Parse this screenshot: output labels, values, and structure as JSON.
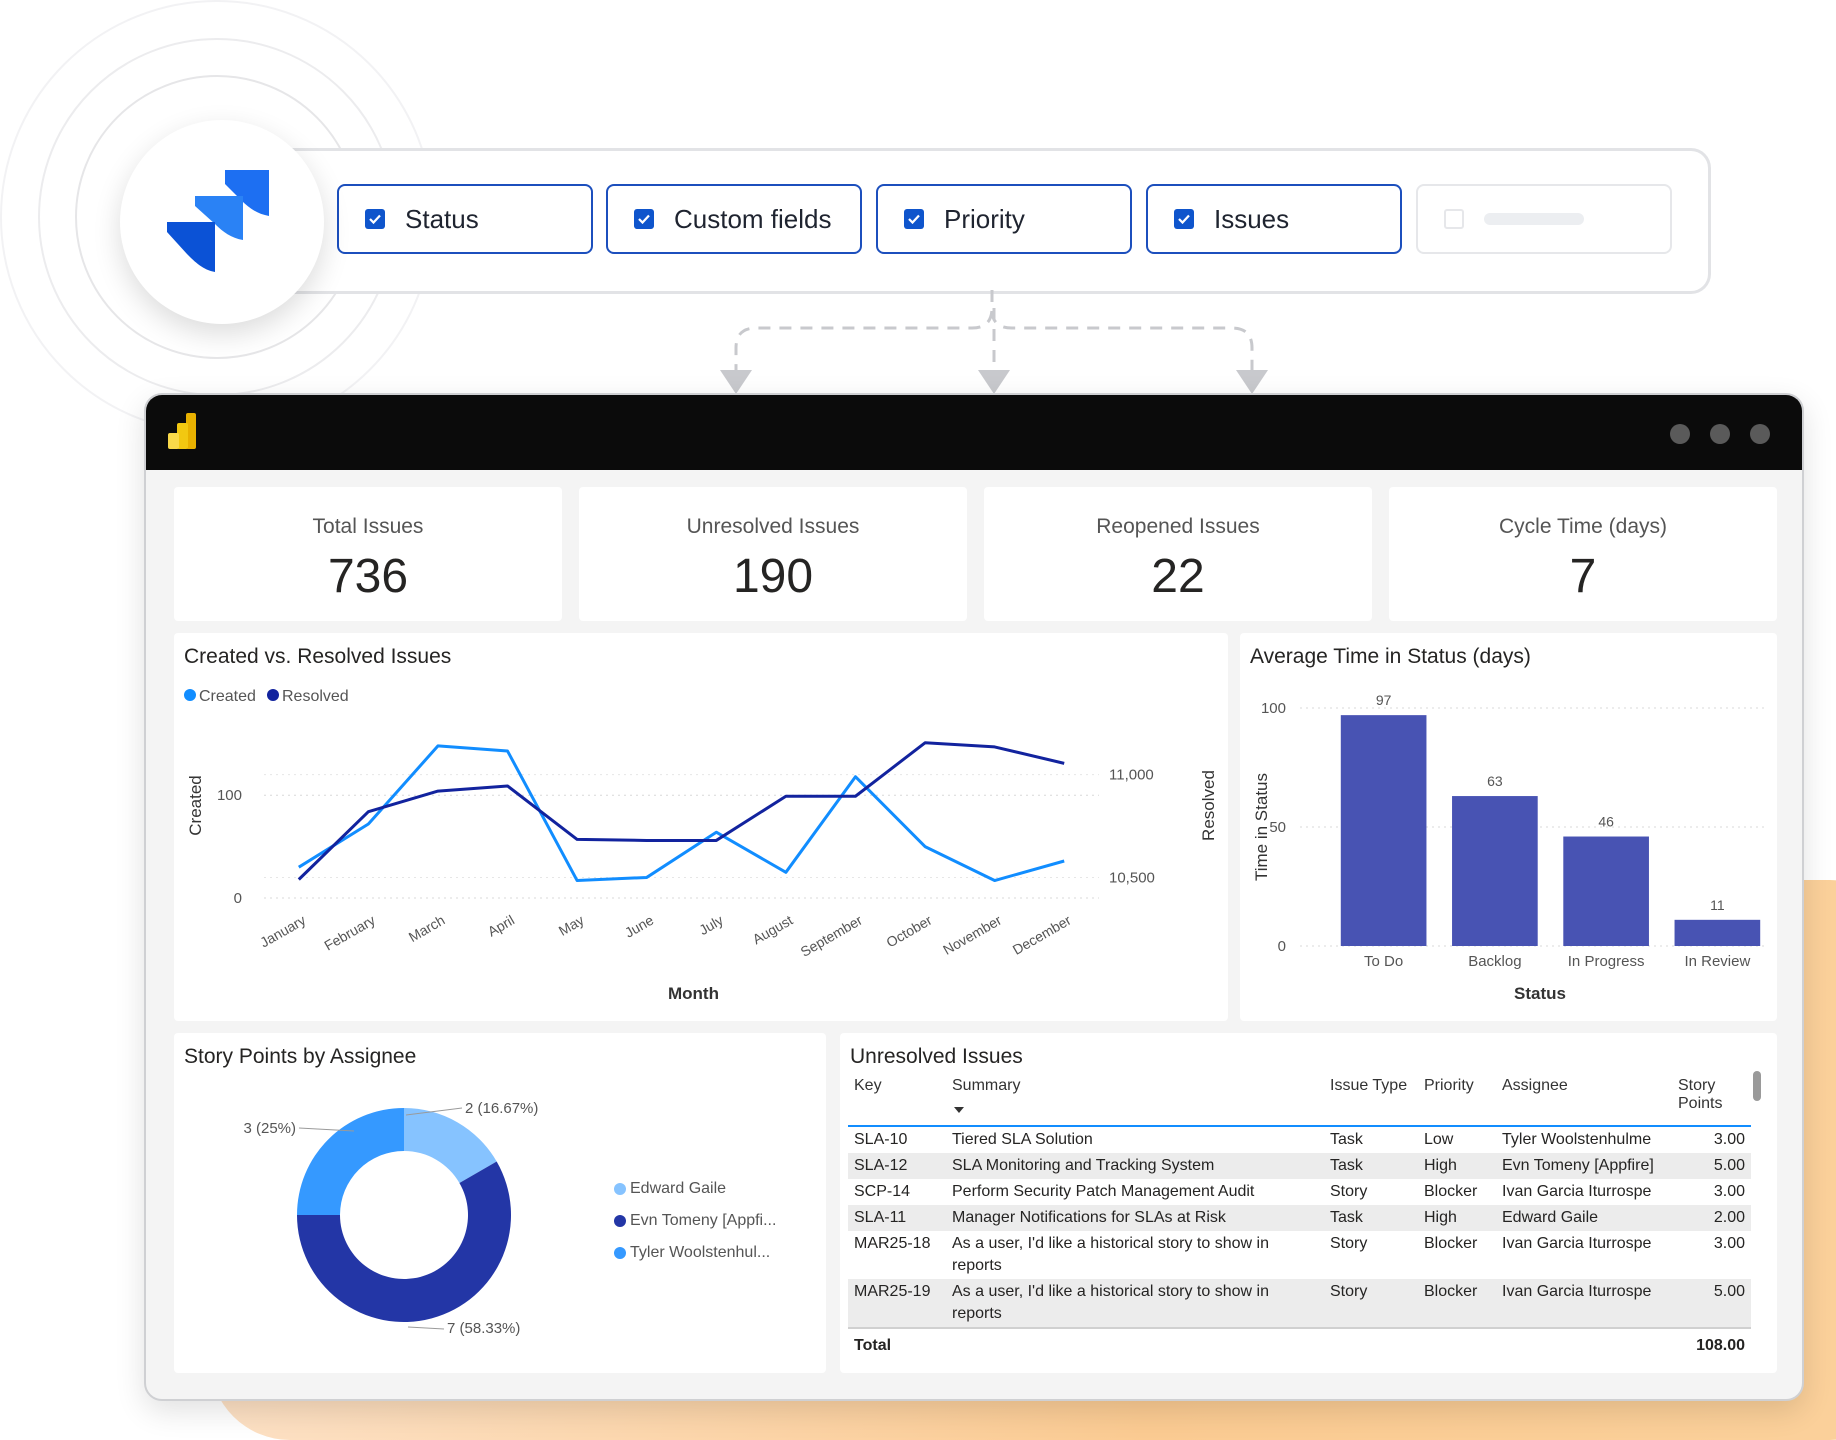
{
  "field_selector": {
    "chips": [
      {
        "label": "Status",
        "checked": true
      },
      {
        "label": "Custom fields",
        "checked": true
      },
      {
        "label": "Priority",
        "checked": true
      },
      {
        "label": "Issues",
        "checked": true
      }
    ]
  },
  "kpis": [
    {
      "label": "Total Issues",
      "value": "736"
    },
    {
      "label": "Unresolved Issues",
      "value": "190"
    },
    {
      "label": "Reopened Issues",
      "value": "22"
    },
    {
      "label": "Cycle Time (days)",
      "value": "7"
    }
  ],
  "colors": {
    "created": "#118dff",
    "resolved": "#12239e",
    "bar": "#4853b3",
    "donut": [
      "#86c3ff",
      "#2336a6",
      "#3599ff"
    ],
    "checkbox": "#0f55cc",
    "chip_border": "#1c4fbd",
    "accent_glow": "#fbcb92"
  },
  "chart_data": [
    {
      "type": "line",
      "title": "Created vs. Resolved Issues",
      "xlabel": "Month",
      "ylabel": "Created",
      "y2label": "Resolved",
      "legend": [
        "Created",
        "Resolved"
      ],
      "legend_position": "top-left",
      "categories": [
        "January",
        "February",
        "March",
        "April",
        "May",
        "June",
        "July",
        "August",
        "September",
        "October",
        "November",
        "December"
      ],
      "series": [
        {
          "name": "Created",
          "axis": "left",
          "values": [
            30,
            72,
            148,
            143,
            17,
            20,
            64,
            25,
            118,
            50,
            17,
            36
          ]
        },
        {
          "name": "Resolved",
          "axis": "right",
          "values": [
            10490,
            10820,
            10920,
            10945,
            10685,
            10680,
            10680,
            10895,
            10895,
            11155,
            11135,
            11055
          ]
        }
      ],
      "y_ticks": [
        "0",
        "100"
      ],
      "ylim": [
        0,
        180
      ],
      "y2_ticks": [
        "10,500",
        "11,000"
      ],
      "y2lim": [
        10400,
        11300
      ],
      "grid": true
    },
    {
      "type": "bar",
      "title": "Average Time in Status (days)",
      "xlabel": "Status",
      "ylabel": "Time in Status",
      "categories": [
        "To Do",
        "Backlog",
        "In Progress",
        "In Review"
      ],
      "values": [
        97,
        63,
        46,
        11
      ],
      "data_labels": [
        "97",
        "63",
        "46",
        "11"
      ],
      "y_ticks": [
        "0",
        "50",
        "100"
      ],
      "ylim": [
        0,
        100
      ],
      "grid": true
    },
    {
      "type": "pie",
      "title": "Story Points by Assignee",
      "legend_position": "right",
      "slices": [
        {
          "name": "Edward Gaile",
          "legend_label": "Edward Gaile",
          "value": 2,
          "label": "2 (16.67%)"
        },
        {
          "name": "Evn Tomeny [Appfire]",
          "legend_label": "Evn Tomeny [Appfi...",
          "value": 7,
          "label": "7 (58.33%)"
        },
        {
          "name": "Tyler Woolstenhulme",
          "legend_label": "Tyler Woolstenhul...",
          "value": 3,
          "label": "3 (25%)"
        }
      ]
    }
  ],
  "table": {
    "title": "Unresolved Issues",
    "columns": [
      "Key",
      "Summary",
      "Issue Type",
      "Priority",
      "Assignee",
      "Story Points"
    ],
    "rows": [
      [
        "SLA-10",
        "Tiered SLA Solution",
        "Task",
        "Low",
        "Tyler Woolstenhulme",
        "3.00"
      ],
      [
        "SLA-12",
        "SLA Monitoring and Tracking System",
        "Task",
        "High",
        "Evn Tomeny [Appfire]",
        "5.00"
      ],
      [
        "SCP-14",
        "Perform Security Patch Management Audit",
        "Story",
        "Blocker",
        "Ivan Garcia Iturrospe",
        "3.00"
      ],
      [
        "SLA-11",
        "Manager Notifications for SLAs at Risk",
        "Task",
        "High",
        "Edward Gaile",
        "2.00"
      ],
      [
        "MAR25-18",
        "As a user, I'd like a historical story to show in reports",
        "Story",
        "Blocker",
        "Ivan Garcia Iturrospe",
        "3.00"
      ],
      [
        "MAR25-19",
        "As a user, I'd like a historical story to show in reports",
        "Story",
        "Blocker",
        "Ivan Garcia Iturrospe",
        "5.00"
      ]
    ],
    "total_label": "Total",
    "total_value": "108.00"
  }
}
